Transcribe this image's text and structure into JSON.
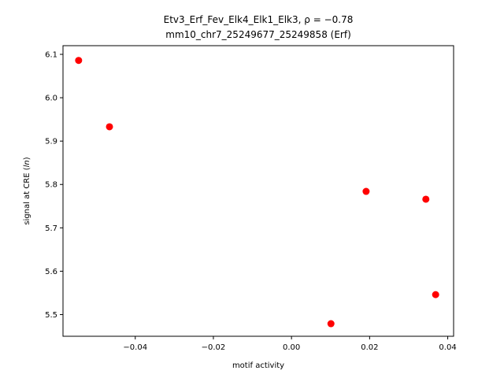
{
  "chart_data": {
    "type": "scatter",
    "title_line1_prefix": "Etv3_Erf_Fev_Elk4_Elk1_Elk3, ",
    "title_line1_stat": "ρ = −0.78",
    "title_line2": "mm10_chr7_25249677_25249858 (Erf)",
    "xlabel": "motif activity",
    "ylabel_prefix": "signal at CRE (",
    "ylabel_italic": "ln",
    "ylabel_suffix": ")",
    "xlim": [
      -0.0585,
      0.0415
    ],
    "ylim": [
      5.45,
      6.12
    ],
    "xticks": [
      -0.04,
      -0.02,
      0.0,
      0.02,
      0.04
    ],
    "xtick_labels": [
      "−0.04",
      "−0.02",
      "0.00",
      "0.02",
      "0.04"
    ],
    "yticks": [
      5.5,
      5.6,
      5.7,
      5.8,
      5.9,
      6.0,
      6.1
    ],
    "ytick_labels": [
      "5.5",
      "5.6",
      "5.7",
      "5.8",
      "5.9",
      "6.0",
      "6.1"
    ],
    "grid": false,
    "marker_color": "#ff0000",
    "points": [
      {
        "x": -0.0545,
        "y": 6.086
      },
      {
        "x": -0.0466,
        "y": 5.933
      },
      {
        "x": 0.0101,
        "y": 5.479
      },
      {
        "x": 0.0191,
        "y": 5.784
      },
      {
        "x": 0.0344,
        "y": 5.766
      },
      {
        "x": 0.0369,
        "y": 5.546
      }
    ]
  }
}
